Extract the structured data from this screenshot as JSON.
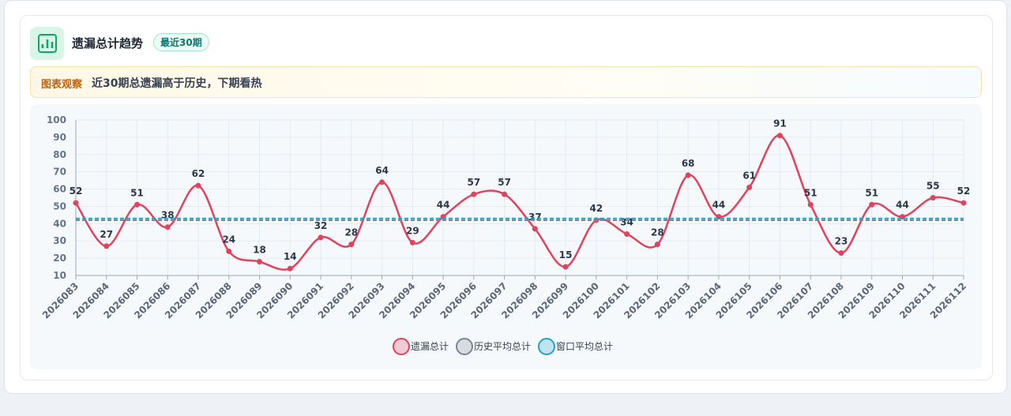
{
  "header": {
    "title": "遗漏总计趋势",
    "badge": "最近30期"
  },
  "observation": {
    "label": "图表观察",
    "text": "近30期总遗漏高于历史，下期看热"
  },
  "chart_data": {
    "type": "line",
    "categories": [
      "2026083",
      "2026084",
      "2026085",
      "2026086",
      "2026087",
      "2026088",
      "2026089",
      "2026090",
      "2026091",
      "2026092",
      "2026093",
      "2026094",
      "2026095",
      "2026096",
      "2026097",
      "2026098",
      "2026099",
      "2026100",
      "2026101",
      "2026102",
      "2026103",
      "2026104",
      "2026105",
      "2026106",
      "2026107",
      "2026108",
      "2026109",
      "2026110",
      "2026111",
      "2026112"
    ],
    "series": [
      {
        "name": "遗漏总计",
        "color": "#e0435e",
        "values": [
          52,
          27,
          51,
          38,
          62,
          24,
          18,
          14,
          32,
          28,
          64,
          29,
          44,
          57,
          57,
          37,
          15,
          42,
          34,
          28,
          68,
          44,
          61,
          91,
          51,
          23,
          51,
          44,
          55,
          52
        ]
      },
      {
        "name": "历史平均总计",
        "color": "#7b8597",
        "value": 42
      },
      {
        "name": "窗口平均总计",
        "color": "#1fa3c8",
        "value": 43
      }
    ],
    "ylim": [
      10,
      100
    ],
    "yticks": [
      10,
      20,
      30,
      40,
      50,
      60,
      70,
      80,
      90,
      100
    ],
    "grid": true
  }
}
